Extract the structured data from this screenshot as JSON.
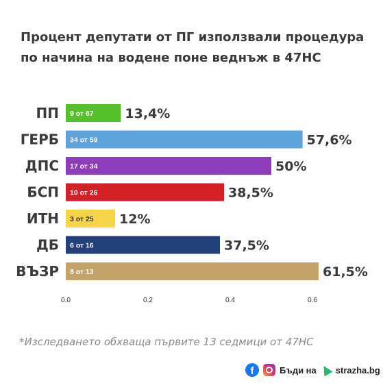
{
  "title_lines": [
    "Процент депутати от ПГ използвали процедура",
    "по начина на водене поне веднъж в 47НС"
  ],
  "footnote": "*Изследването обхваща първите 13 седмици от 47НС",
  "brand": {
    "text_before": "Бъди на",
    "text_after": "strazha.bg",
    "icons": [
      "facebook-icon",
      "instagram-icon",
      "cursor-arrow-icon"
    ]
  },
  "chart_data": {
    "type": "bar",
    "orientation": "horizontal",
    "categories": [
      "ПП",
      "ГЕРБ",
      "ДПС",
      "БСП",
      "ИТН",
      "ДБ",
      "ВЪЗР"
    ],
    "values": [
      0.134,
      0.576,
      0.5,
      0.385,
      0.12,
      0.375,
      0.615
    ],
    "value_labels": [
      "13,4%",
      "57,6%",
      "50%",
      "38,5%",
      "12%",
      "37,5%",
      "61,5%"
    ],
    "inner_labels": [
      "9 от 67",
      "34 от 59",
      "17 от 34",
      "10 от 26",
      "3 от 25",
      "6 от 16",
      "8 от 13"
    ],
    "colors": [
      "#56c02b",
      "#5fa3dc",
      "#8d3dba",
      "#d32027",
      "#f5d547",
      "#23407a",
      "#c3a36a"
    ],
    "xticks": [
      "0.0",
      "0.2",
      "0.4",
      "0.6"
    ],
    "xlim": [
      0,
      0.615
    ],
    "grid": false
  }
}
